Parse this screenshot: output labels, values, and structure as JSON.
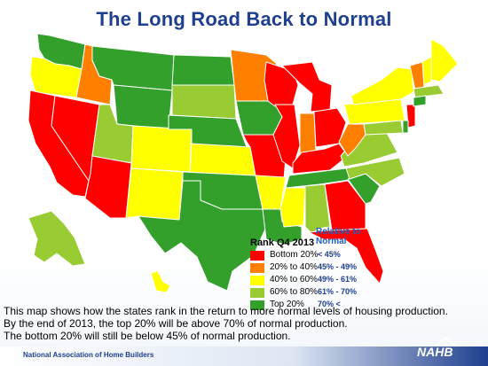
{
  "title": "The Long Road Back to Normal",
  "legend": {
    "title": "Rank Q4 2013",
    "relative_heading": "Relative to Normal",
    "items": [
      {
        "label": "Bottom 20%",
        "range": "< 45%",
        "color": "#ff0000"
      },
      {
        "label": "20% to 40%",
        "range": "45% - 49%",
        "color": "#ff8000"
      },
      {
        "label": "40% to 60%",
        "range": "49% - 61%",
        "color": "#ffff00"
      },
      {
        "label": "60% to 80%",
        "range": "61% - 70%",
        "color": "#99cc33"
      },
      {
        "label": "Top 20%",
        "range": "70% <",
        "color": "#33a02c"
      }
    ]
  },
  "caption": [
    "This map shows how the states rank in the return to more normal levels of housing production.",
    "By the end of 2013, the top 20% will be above 70% of normal production.",
    "The bottom 20% will still be below 45% of normal production."
  ],
  "footer": {
    "organization": "National Association of Home Builders",
    "logo_text": "NAHB"
  },
  "states": [
    {
      "code": "WA",
      "tier": 5
    },
    {
      "code": "OR",
      "tier": 3
    },
    {
      "code": "CA",
      "tier": 1
    },
    {
      "code": "NV",
      "tier": 1
    },
    {
      "code": "ID",
      "tier": 2
    },
    {
      "code": "MT",
      "tier": 5
    },
    {
      "code": "WY",
      "tier": 5
    },
    {
      "code": "UT",
      "tier": 4
    },
    {
      "code": "AZ",
      "tier": 1
    },
    {
      "code": "CO",
      "tier": 3
    },
    {
      "code": "NM",
      "tier": 3
    },
    {
      "code": "ND",
      "tier": 5
    },
    {
      "code": "SD",
      "tier": 4
    },
    {
      "code": "NE",
      "tier": 5
    },
    {
      "code": "KS",
      "tier": 3
    },
    {
      "code": "OK",
      "tier": 5
    },
    {
      "code": "TX",
      "tier": 5
    },
    {
      "code": "MN",
      "tier": 2
    },
    {
      "code": "IA",
      "tier": 5
    },
    {
      "code": "MO",
      "tier": 1
    },
    {
      "code": "AR",
      "tier": 3
    },
    {
      "code": "LA",
      "tier": 5
    },
    {
      "code": "WI",
      "tier": 1
    },
    {
      "code": "IL",
      "tier": 1
    },
    {
      "code": "MI",
      "tier": 1
    },
    {
      "code": "IN",
      "tier": 2
    },
    {
      "code": "OH",
      "tier": 1
    },
    {
      "code": "KY",
      "tier": 1
    },
    {
      "code": "TN",
      "tier": 5
    },
    {
      "code": "MS",
      "tier": 3
    },
    {
      "code": "AL",
      "tier": 4
    },
    {
      "code": "GA",
      "tier": 1
    },
    {
      "code": "FL",
      "tier": 1
    },
    {
      "code": "SC",
      "tier": 5
    },
    {
      "code": "NC",
      "tier": 4
    },
    {
      "code": "VA",
      "tier": 4
    },
    {
      "code": "WV",
      "tier": 2
    },
    {
      "code": "PA",
      "tier": 3
    },
    {
      "code": "NY",
      "tier": 3
    },
    {
      "code": "ME",
      "tier": 3
    },
    {
      "code": "NH",
      "tier": 3
    },
    {
      "code": "VT",
      "tier": 2
    },
    {
      "code": "MA",
      "tier": 4
    },
    {
      "code": "NJ",
      "tier": 1
    },
    {
      "code": "MD",
      "tier": 4
    },
    {
      "code": "DE",
      "tier": 5
    },
    {
      "code": "CT",
      "tier": 5
    },
    {
      "code": "AK",
      "tier": 4
    },
    {
      "code": "HI",
      "tier": 3
    }
  ]
}
